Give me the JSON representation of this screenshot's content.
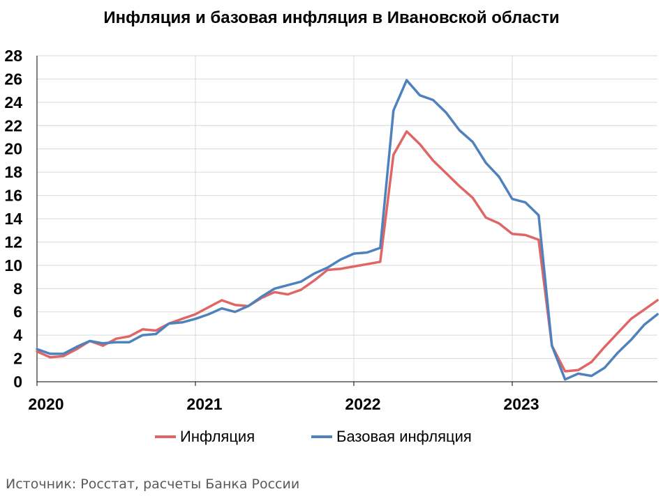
{
  "chart_data": {
    "type": "line",
    "title": "Инфляция и базовая инфляция в Ивановской области",
    "xlabel": "",
    "ylabel": "",
    "ylim": [
      0,
      28
    ],
    "yticks": [
      0,
      2,
      4,
      6,
      8,
      10,
      12,
      14,
      16,
      18,
      20,
      22,
      24,
      26,
      28
    ],
    "x_labels": [
      "2020",
      "2021",
      "2022",
      "2023"
    ],
    "grid": true,
    "legend_position": "bottom",
    "x": [
      "2020-01",
      "2020-02",
      "2020-03",
      "2020-04",
      "2020-05",
      "2020-06",
      "2020-07",
      "2020-08",
      "2020-09",
      "2020-10",
      "2020-11",
      "2020-12",
      "2021-01",
      "2021-02",
      "2021-03",
      "2021-04",
      "2021-05",
      "2021-06",
      "2021-07",
      "2021-08",
      "2021-09",
      "2021-10",
      "2021-11",
      "2021-12",
      "2022-01",
      "2022-02",
      "2022-03",
      "2022-04",
      "2022-05",
      "2022-06",
      "2022-07",
      "2022-08",
      "2022-09",
      "2022-10",
      "2022-11",
      "2022-12",
      "2023-01",
      "2023-02",
      "2023-03",
      "2023-04",
      "2023-05",
      "2023-06",
      "2023-07",
      "2023-08",
      "2023-09",
      "2023-10",
      "2023-11",
      "2023-12"
    ],
    "series": [
      {
        "name": "Инфляция",
        "color": "#e06666",
        "values": [
          2.6,
          2.1,
          2.2,
          2.8,
          3.5,
          3.1,
          3.7,
          3.9,
          4.5,
          4.4,
          5.0,
          5.4,
          5.8,
          6.4,
          7.0,
          6.6,
          6.5,
          7.2,
          7.7,
          7.5,
          7.9,
          8.7,
          9.6,
          9.7,
          9.9,
          10.1,
          10.3,
          19.5,
          21.5,
          20.4,
          19.0,
          17.9,
          16.8,
          15.8,
          14.1,
          13.6,
          12.7,
          12.6,
          12.2,
          3.1,
          0.9,
          1.0,
          1.7,
          3.0,
          4.2,
          5.4,
          6.2,
          7.0
        ]
      },
      {
        "name": "Базовая инфляция",
        "color": "#4f81bd",
        "values": [
          2.8,
          2.4,
          2.4,
          3.0,
          3.5,
          3.3,
          3.4,
          3.4,
          4.0,
          4.1,
          5.0,
          5.1,
          5.4,
          5.8,
          6.3,
          6.0,
          6.5,
          7.3,
          8.0,
          8.3,
          8.6,
          9.3,
          9.8,
          10.5,
          11.0,
          11.1,
          11.5,
          23.3,
          25.9,
          24.6,
          24.2,
          23.1,
          21.6,
          20.6,
          18.8,
          17.6,
          15.7,
          15.4,
          14.3,
          3.1,
          0.2,
          0.7,
          0.5,
          1.2,
          2.5,
          3.6,
          4.9,
          5.8
        ]
      }
    ]
  },
  "source": "Источник: Росстат, расчеты Банка России"
}
